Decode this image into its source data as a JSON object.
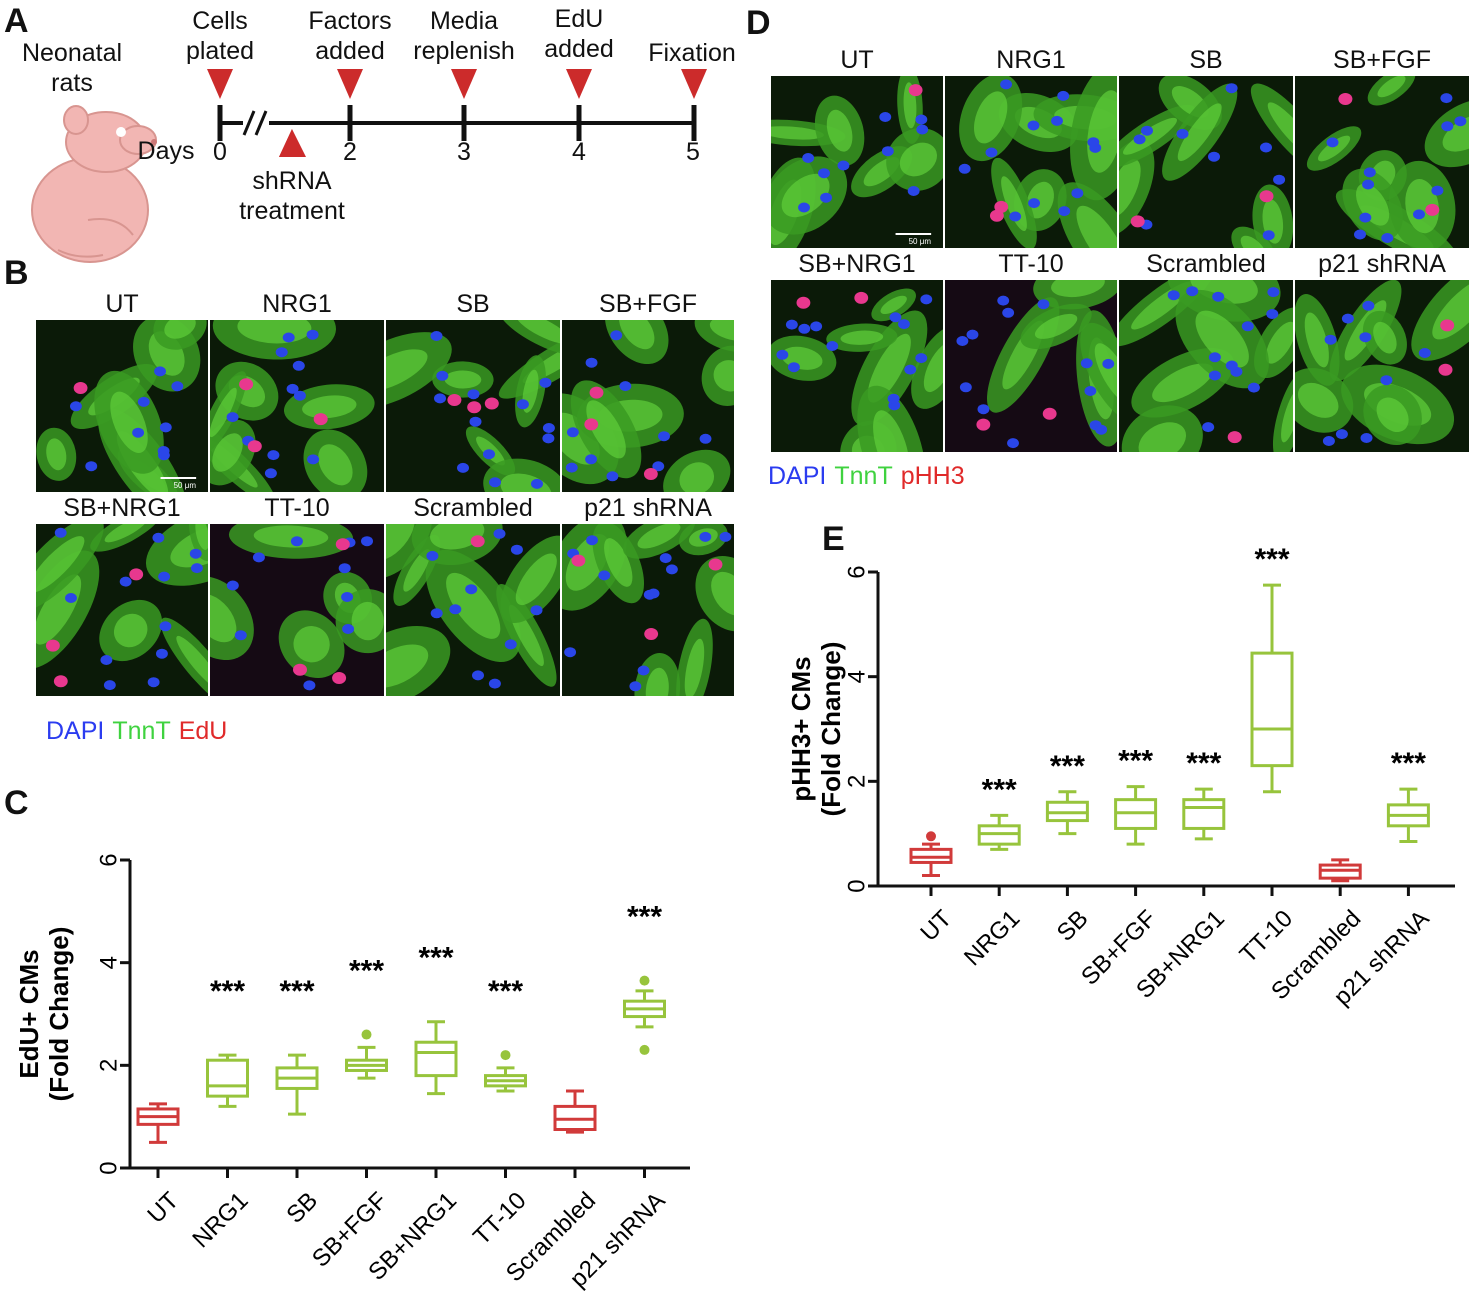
{
  "panels": {
    "a": "A",
    "b": "B",
    "c": "C",
    "d": "D",
    "e": "E"
  },
  "timeline": {
    "subject": "Neonatal rats",
    "days_label": "Days",
    "days": [
      "0",
      "2",
      "3",
      "4",
      "5"
    ],
    "events_top": [
      {
        "label": "Cells plated",
        "day": "0"
      },
      {
        "label": "Factors added",
        "day": "2"
      },
      {
        "label": "Media replenish",
        "day": "3"
      },
      {
        "label": "EdU added",
        "day": "4"
      },
      {
        "label": "Fixation",
        "day": "5"
      }
    ],
    "event_bottom": {
      "label": "shRNA treatment"
    },
    "colors": {
      "marker": "#cc2b2b",
      "rat": "#f2b6b3"
    }
  },
  "micro_b": {
    "labels": [
      "UT",
      "NRG1",
      "SB",
      "SB+FGF",
      "SB+NRG1",
      "TT-10",
      "Scrambled",
      "p21 shRNA"
    ],
    "scale_bar": "50 μm",
    "legend": [
      {
        "text": "DAPI",
        "color": "#2b3cf0"
      },
      {
        "text": "TnnT",
        "color": "#3fd23f"
      },
      {
        "text": "EdU",
        "color": "#e02a2a"
      }
    ]
  },
  "micro_d": {
    "labels": [
      "UT",
      "NRG1",
      "SB",
      "SB+FGF",
      "SB+NRG1",
      "TT-10",
      "Scrambled",
      "p21 shRNA"
    ],
    "scale_bar": "50 μm",
    "legend": [
      {
        "text": "DAPI",
        "color": "#2b3cf0"
      },
      {
        "text": "TnnT",
        "color": "#3fd23f"
      },
      {
        "text": "pHH3",
        "color": "#e02a2a"
      }
    ]
  },
  "chart_data": [
    {
      "id": "C",
      "type": "box",
      "ylabel": "EdU+ CMs (Fold Change)",
      "ylabel_lines": [
        "EdU+ CMs",
        "(Fold Change)"
      ],
      "ylim": [
        0,
        6
      ],
      "yticks": [
        "0",
        "2",
        "4",
        "6"
      ],
      "categories": [
        "UT",
        "NRG1",
        "SB",
        "SB+FGF",
        "SB+NRG1",
        "TT-10",
        "Scrambled",
        "p21 shRNA"
      ],
      "colors": [
        "#d13a3a",
        "#97c43c",
        "#97c43c",
        "#97c43c",
        "#97c43c",
        "#97c43c",
        "#d13a3a",
        "#97c43c"
      ],
      "boxes": [
        {
          "min": 0.5,
          "q1": 0.85,
          "median": 1.0,
          "q3": 1.15,
          "max": 1.25,
          "outliers": []
        },
        {
          "min": 1.2,
          "q1": 1.4,
          "median": 1.6,
          "q3": 2.1,
          "max": 2.2,
          "outliers": []
        },
        {
          "min": 1.05,
          "q1": 1.55,
          "median": 1.75,
          "q3": 1.95,
          "max": 2.2,
          "outliers": []
        },
        {
          "min": 1.75,
          "q1": 1.9,
          "median": 2.0,
          "q3": 2.1,
          "max": 2.35,
          "outliers": [
            2.6
          ]
        },
        {
          "min": 1.45,
          "q1": 1.8,
          "median": 2.25,
          "q3": 2.45,
          "max": 2.85,
          "outliers": []
        },
        {
          "min": 1.5,
          "q1": 1.6,
          "median": 1.7,
          "q3": 1.8,
          "max": 1.95,
          "outliers": [
            2.2
          ]
        },
        {
          "min": 0.7,
          "q1": 0.75,
          "median": 0.95,
          "q3": 1.2,
          "max": 1.5,
          "outliers": []
        },
        {
          "min": 2.75,
          "q1": 2.95,
          "median": 3.1,
          "q3": 3.25,
          "max": 3.45,
          "outliers": [
            3.65,
            2.3
          ]
        }
      ],
      "significance": [
        "",
        "***",
        "***",
        "***",
        "***",
        "***",
        "",
        "***"
      ]
    },
    {
      "id": "E",
      "type": "box",
      "ylabel": "pHH3+ CMs (Fold Change)",
      "ylabel_lines": [
        "pHH3+ CMs",
        "(Fold Change)"
      ],
      "ylim": [
        0,
        6
      ],
      "yticks": [
        "0",
        "2",
        "4",
        "6"
      ],
      "categories": [
        "UT",
        "NRG1",
        "SB",
        "SB+FGF",
        "SB+NRG1",
        "TT-10",
        "Scrambled",
        "p21 shRNA"
      ],
      "colors": [
        "#d13a3a",
        "#97c43c",
        "#97c43c",
        "#97c43c",
        "#97c43c",
        "#97c43c",
        "#d13a3a",
        "#97c43c"
      ],
      "boxes": [
        {
          "min": 0.2,
          "q1": 0.45,
          "median": 0.55,
          "q3": 0.7,
          "max": 0.8,
          "outliers": [
            0.95
          ]
        },
        {
          "min": 0.7,
          "q1": 0.8,
          "median": 1.0,
          "q3": 1.15,
          "max": 1.35,
          "outliers": []
        },
        {
          "min": 1.0,
          "q1": 1.25,
          "median": 1.4,
          "q3": 1.6,
          "max": 1.8,
          "outliers": []
        },
        {
          "min": 0.8,
          "q1": 1.1,
          "median": 1.4,
          "q3": 1.65,
          "max": 1.9,
          "outliers": []
        },
        {
          "min": 0.9,
          "q1": 1.1,
          "median": 1.5,
          "q3": 1.65,
          "max": 1.85,
          "outliers": []
        },
        {
          "min": 1.8,
          "q1": 2.3,
          "median": 3.0,
          "q3": 4.45,
          "max": 5.75,
          "outliers": []
        },
        {
          "min": 0.1,
          "q1": 0.15,
          "median": 0.3,
          "q3": 0.4,
          "max": 0.5,
          "outliers": []
        },
        {
          "min": 0.85,
          "q1": 1.15,
          "median": 1.35,
          "q3": 1.55,
          "max": 1.85,
          "outliers": []
        }
      ],
      "significance": [
        "",
        "***",
        "***",
        "***",
        "***",
        "***",
        "",
        "***"
      ]
    }
  ]
}
